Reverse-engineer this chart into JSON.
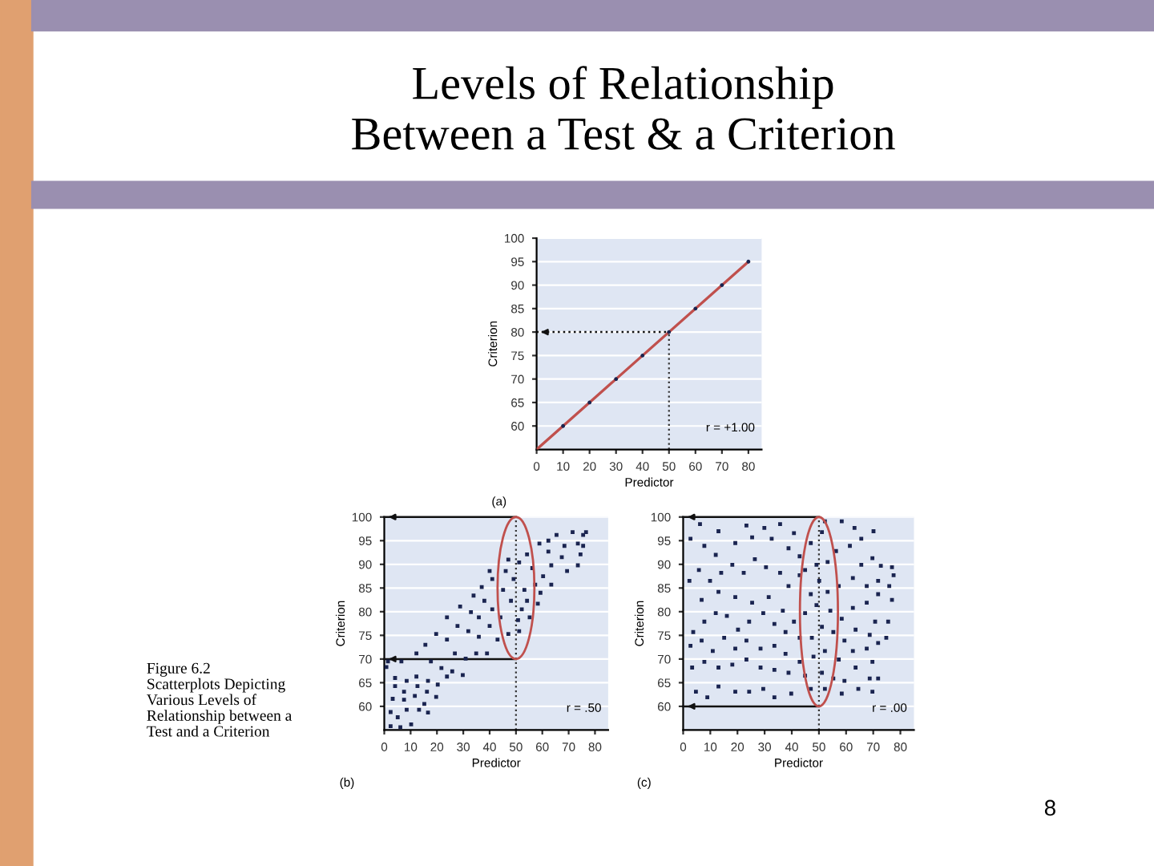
{
  "chart_data": [
    {
      "type": "scatter",
      "title": "Levels of Relationship\nBetween a Test & a Criterion",
      "xlabel": "Predictor",
      "ylabel": "Criterion",
      "xlim": [
        0,
        85
      ],
      "ylim": [
        55,
        100
      ],
      "xticks": [
        0,
        10,
        20,
        30,
        40,
        50,
        60,
        70,
        80
      ],
      "yticks": [
        60,
        65,
        70,
        75,
        80,
        85,
        90,
        95,
        100
      ],
      "grid": "y",
      "marker": "circle",
      "series": [
        {
          "type": "line",
          "marker": "none",
          "color": "#c0504d",
          "x": [
            0,
            80
          ],
          "values": [
            55,
            95
          ]
        },
        {
          "color": "#1a2450",
          "x": [
            10,
            20,
            30,
            40,
            50,
            60,
            70,
            80
          ],
          "values": [
            60,
            65,
            70,
            75,
            80,
            85,
            90,
            95
          ]
        }
      ],
      "ref_lines": [
        {
          "axis": "x",
          "value": 50,
          "line_style": "dotted"
        },
        {
          "axis": "y",
          "value": 80,
          "line_style": "dotted"
        }
      ],
      "annotations": [
        "r = +1.00",
        "(a)"
      ]
    },
    {
      "type": "scatter",
      "xlabel": "Predictor",
      "ylabel": "Criterion",
      "xlim": [
        0,
        85
      ],
      "ylim": [
        55,
        100
      ],
      "xticks": [
        0,
        10,
        20,
        30,
        40,
        50,
        60,
        70,
        80
      ],
      "yticks": [
        60,
        65,
        70,
        75,
        80,
        85,
        90,
        95,
        100
      ],
      "grid": "y",
      "marker": "square",
      "series": [
        {
          "color": "#1a2450",
          "x": [
            2.4,
            6.1,
            10.2,
            2.4,
            5.1,
            8.5,
            13.2,
            3.2,
            7.5,
            11.6,
            15.2,
            16.6,
            4.1,
            7.5,
            12.6,
            16.2,
            19.7,
            0.8,
            4.1,
            8.5,
            12.2,
            16.6,
            20.3,
            23.8,
            1.4,
            6.5,
            12.2,
            17.7,
            21.7,
            25.8,
            29.8,
            15.6,
            19.7,
            23.8,
            26.8,
            30.9,
            34.9,
            39.0,
            23.8,
            27.8,
            31.9,
            35.9,
            28.8,
            32.9,
            35.9,
            40.0,
            43.0,
            33.9,
            38.0,
            41.0,
            44.1,
            47.1,
            37.0,
            41.0,
            45.1,
            48.1,
            40.0,
            46.1,
            49.1,
            53.2,
            51.2,
            50.8,
            52.2,
            54.2,
            47.1,
            51.2,
            54.2,
            56.2,
            57.3,
            55.2,
            58.3,
            59.3,
            58.9,
            62.3,
            63.4,
            60.3,
            63.4,
            62.3,
            65.4,
            68.4,
            67.4,
            69.4,
            71.5,
            73.5,
            74.5,
            73.5,
            75.5,
            76.6,
            75.5
          ],
          "values": [
            55.8,
            55.6,
            56.2,
            58.8,
            57.7,
            59.3,
            59.3,
            61.6,
            61.4,
            62.2,
            60.5,
            58.7,
            64.3,
            63.1,
            64.3,
            63.1,
            62.0,
            68.3,
            66.0,
            65.4,
            66.3,
            65.4,
            64.6,
            66.3,
            69.5,
            69.5,
            71.2,
            69.5,
            68.1,
            67.4,
            66.6,
            73.0,
            75.3,
            74.1,
            71.2,
            70.1,
            71.2,
            71.2,
            78.8,
            77.0,
            75.9,
            74.7,
            81.1,
            79.9,
            78.8,
            77.0,
            74.1,
            83.4,
            82.3,
            80.5,
            78.8,
            75.3,
            85.2,
            86.9,
            84.6,
            82.3,
            88.6,
            88.6,
            86.9,
            84.6,
            75.9,
            78.2,
            80.5,
            82.3,
            91.0,
            90.4,
            92.1,
            89.2,
            85.7,
            78.8,
            81.7,
            84.0,
            94.4,
            92.7,
            89.8,
            87.5,
            85.7,
            95.0,
            96.2,
            93.9,
            91.5,
            88.6,
            96.8,
            94.4,
            92.1,
            89.8,
            96.2,
            96.8,
            93.9
          ]
        }
      ],
      "ref_lines": [
        {
          "axis": "x",
          "value": 50,
          "line_style": "dotted"
        },
        {
          "axis": "y",
          "value": 100,
          "line_style": "solid"
        },
        {
          "axis": "y",
          "value": 70,
          "line_style": "solid"
        }
      ],
      "annotations": [
        "r = .50",
        "(b)",
        "Figure 6.2\nScatterplots Depicting\nVarious Levels of\nRelationship between a\nTest and a Criterion",
        "8"
      ]
    },
    {
      "type": "scatter",
      "xlabel": "Predictor",
      "ylabel": "Criterion",
      "xlim": [
        0,
        85
      ],
      "ylim": [
        55,
        100
      ],
      "xticks": [
        0,
        10,
        20,
        30,
        40,
        50,
        60,
        70,
        80
      ],
      "yticks": [
        60,
        65,
        70,
        75,
        80,
        85,
        90,
        95,
        100
      ],
      "grid": "y",
      "marker": "square",
      "series": [
        {
          "color": "#1a2450",
          "x": [
            6.2,
            13.0,
            23.3,
            29.9,
            35.7,
            40.8,
            2.7,
            7.8,
            12.0,
            19.2,
            25.4,
            32.6,
            38.8,
            42.9,
            47.0,
            51.1,
            52.2,
            58.4,
            63.1,
            70.1,
            65.6,
            61.4,
            56.3,
            53.2,
            49.1,
            44.9,
            69.7,
            65.6,
            72.8,
            76.9,
            77.5,
            71.8,
            67.6,
            62.5,
            57.3,
            53.2,
            50.1,
            47.0,
            42.9,
            38.8,
            35.7,
            30.5,
            26.4,
            22.3,
            18.1,
            14.0,
            9.9,
            5.8,
            2.3,
            6.8,
            13.0,
            19.2,
            25.4,
            31.5,
            36.7,
            40.8,
            44.9,
            49.1,
            54.2,
            58.4,
            62.5,
            67.6,
            71.8,
            75.9,
            76.9,
            75.5,
            70.7,
            68.7,
            63.5,
            59.4,
            55.3,
            51.1,
            47.4,
            42.9,
            37.7,
            33.6,
            29.5,
            24.3,
            20.2,
            16.1,
            12.0,
            7.8,
            3.7,
            2.7,
            6.8,
            10.9,
            15.1,
            19.2,
            23.3,
            28.5,
            33.6,
            37.7,
            42.9,
            48.0,
            52.2,
            57.3,
            62.5,
            67.6,
            71.8,
            74.8,
            3.3,
            7.8,
            13.0,
            18.1,
            23.3,
            28.5,
            33.6,
            38.8,
            44.9,
            51.1,
            55.3,
            59.4,
            63.5,
            68.7,
            69.7,
            4.7,
            8.9,
            13.0,
            19.2,
            24.3,
            29.5,
            33.6,
            39.8,
            47.0,
            52.2,
            58.4,
            64.5,
            69.7,
            71.8
          ],
          "values": [
            98.5,
            97.0,
            98.2,
            97.7,
            98.5,
            96.6,
            95.4,
            93.9,
            92.0,
            94.5,
            95.7,
            95.4,
            93.4,
            91.7,
            94.5,
            96.8,
            99.1,
            99.1,
            97.7,
            97.0,
            95.4,
            93.9,
            92.8,
            90.5,
            89.9,
            88.8,
            91.3,
            89.9,
            89.7,
            89.4,
            87.7,
            86.5,
            85.4,
            87.1,
            85.4,
            84.2,
            86.5,
            83.7,
            87.7,
            85.4,
            88.2,
            89.4,
            91.1,
            88.2,
            89.9,
            88.2,
            86.5,
            88.8,
            86.5,
            82.5,
            84.2,
            83.1,
            81.9,
            83.1,
            80.2,
            77.9,
            79.7,
            81.4,
            80.2,
            78.5,
            80.8,
            81.9,
            83.7,
            85.4,
            82.5,
            77.9,
            77.9,
            75.1,
            76.2,
            73.9,
            75.7,
            76.8,
            74.5,
            74.5,
            75.7,
            77.4,
            79.7,
            77.9,
            76.2,
            79.1,
            79.7,
            77.9,
            75.7,
            72.8,
            73.9,
            71.7,
            74.5,
            72.2,
            73.9,
            72.2,
            72.8,
            71.1,
            69.4,
            70.5,
            71.7,
            69.9,
            71.7,
            72.2,
            73.4,
            74.5,
            68.2,
            69.4,
            68.2,
            68.8,
            69.9,
            68.2,
            67.7,
            67.1,
            66.5,
            67.1,
            65.9,
            65.4,
            68.2,
            65.9,
            69.4,
            63.1,
            61.9,
            64.2,
            63.1,
            63.1,
            63.7,
            61.9,
            62.7,
            63.7,
            63.7,
            62.7,
            63.7,
            63.1,
            65.9
          ]
        }
      ],
      "ref_lines": [
        {
          "axis": "x",
          "value": 50,
          "line_style": "dotted"
        },
        {
          "axis": "y",
          "value": 100,
          "line_style": "solid"
        },
        {
          "axis": "y",
          "value": 60,
          "line_style": "solid"
        }
      ],
      "annotations": [
        "r = .00",
        "(c)"
      ]
    }
  ]
}
